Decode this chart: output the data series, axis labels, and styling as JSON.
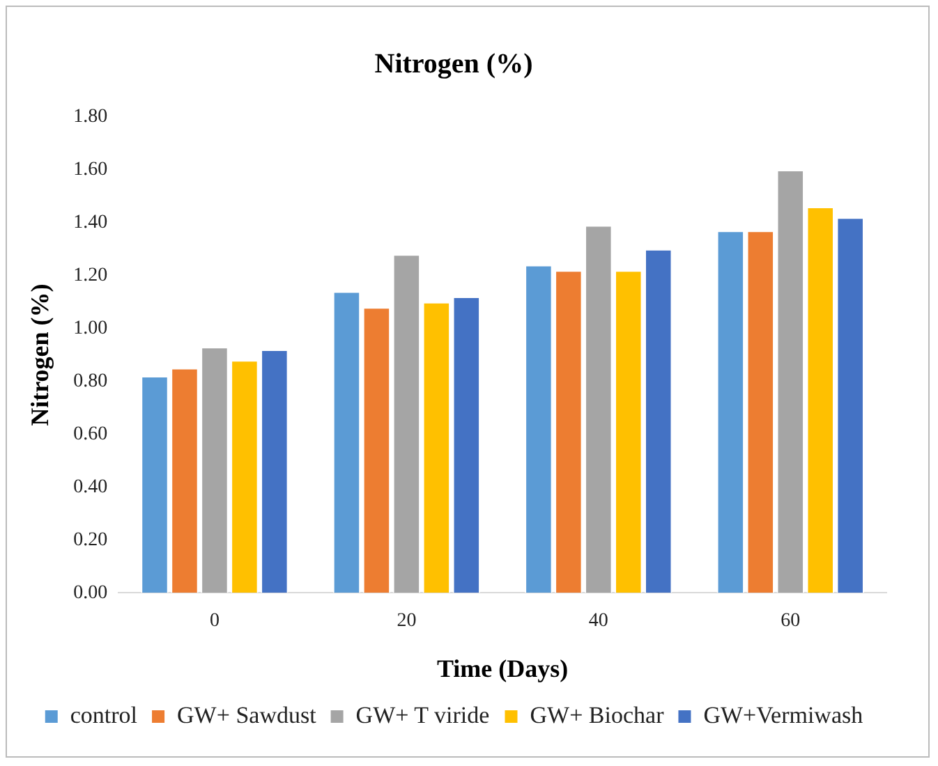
{
  "chart_data": {
    "type": "bar",
    "title": "Nitrogen (%)",
    "xlabel": "Time (Days)",
    "ylabel": "Nitrogen (%)",
    "categories": [
      "0",
      "20",
      "40",
      "60"
    ],
    "series": [
      {
        "name": "control",
        "color": "#5b9bd5",
        "values": [
          0.82,
          1.14,
          1.24,
          1.37
        ]
      },
      {
        "name": "GW+ Sawdust",
        "color": "#ed7d31",
        "values": [
          0.85,
          1.08,
          1.22,
          1.37
        ]
      },
      {
        "name": "GW+ T viride",
        "color": "#a5a5a5",
        "values": [
          0.93,
          1.28,
          1.39,
          1.6
        ]
      },
      {
        "name": "GW+ Biochar",
        "color": "#ffc000",
        "values": [
          0.88,
          1.1,
          1.22,
          1.46
        ]
      },
      {
        "name": "GW+Vermiwash",
        "color": "#4472c4",
        "values": [
          0.92,
          1.12,
          1.3,
          1.42
        ]
      }
    ],
    "ylim": [
      0,
      1.8
    ],
    "yticks": [
      {
        "value": 0,
        "label": "0.00"
      },
      {
        "value": 0.2,
        "label": "0.20"
      },
      {
        "value": 0.4,
        "label": "0.40"
      },
      {
        "value": 0.6,
        "label": "0.60"
      },
      {
        "value": 0.8,
        "label": "0.80"
      },
      {
        "value": 1.0,
        "label": "1.00"
      },
      {
        "value": 1.2,
        "label": "1.20"
      },
      {
        "value": 1.4,
        "label": "1.40"
      },
      {
        "value": 1.6,
        "label": "1.60"
      },
      {
        "value": 1.8,
        "label": "1.80"
      }
    ],
    "grid": false,
    "legend": "bottom"
  }
}
